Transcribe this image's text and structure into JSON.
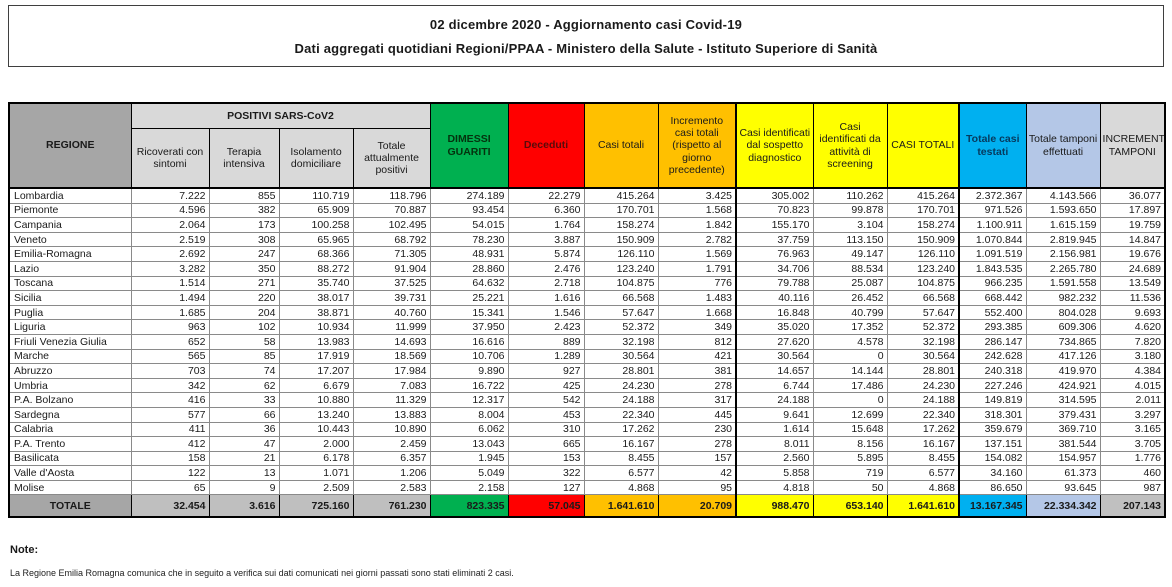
{
  "title": {
    "line1": "02 dicembre 2020 - Aggiornamento casi Covid-19",
    "line2": "Dati aggregati quotidiani Regioni/PPAA - Ministero della Salute - Istituto Superiore di Sanità"
  },
  "table": {
    "headers": {
      "regione": "REGIONE",
      "positivi_group": "POSITIVI SARS-CoV2",
      "ricoverati": "Ricoverati con sintomi",
      "terapia": "Terapia intensiva",
      "isolamento": "Isolamento domiciliare",
      "totale_positivi": "Totale attualmente positivi",
      "dimessi": "DIMESSI GUARITI",
      "deceduti": "Deceduti",
      "casi_totali": "Casi totali",
      "incremento_casi": "Incremento casi totali (rispetto al giorno precedente)",
      "sospetto": "Casi identificati dal sospetto diagnostico",
      "screening": "Casi identificati da attività di screening",
      "casi_totali_caps": "CASI TOTALI",
      "testati": "Totale casi testati",
      "tamponi": "Totale tamponi effettuati",
      "incremento_tamponi": "INCREMENTO TAMPONI"
    },
    "rows": [
      {
        "region": "Lombardia",
        "values": [
          "7.222",
          "855",
          "110.719",
          "118.796",
          "274.189",
          "22.279",
          "415.264",
          "3.425",
          "305.002",
          "110.262",
          "415.264",
          "2.372.367",
          "4.143.566",
          "36.077"
        ]
      },
      {
        "region": "Piemonte",
        "values": [
          "4.596",
          "382",
          "65.909",
          "70.887",
          "93.454",
          "6.360",
          "170.701",
          "1.568",
          "70.823",
          "99.878",
          "170.701",
          "971.526",
          "1.593.650",
          "17.897"
        ]
      },
      {
        "region": "Campania",
        "values": [
          "2.064",
          "173",
          "100.258",
          "102.495",
          "54.015",
          "1.764",
          "158.274",
          "1.842",
          "155.170",
          "3.104",
          "158.274",
          "1.100.911",
          "1.615.159",
          "19.759"
        ]
      },
      {
        "region": "Veneto",
        "values": [
          "2.519",
          "308",
          "65.965",
          "68.792",
          "78.230",
          "3.887",
          "150.909",
          "2.782",
          "37.759",
          "113.150",
          "150.909",
          "1.070.844",
          "2.819.945",
          "14.847"
        ]
      },
      {
        "region": "Emilia-Romagna",
        "values": [
          "2.692",
          "247",
          "68.366",
          "71.305",
          "48.931",
          "5.874",
          "126.110",
          "1.569",
          "76.963",
          "49.147",
          "126.110",
          "1.091.519",
          "2.156.981",
          "19.676"
        ]
      },
      {
        "region": "Lazio",
        "values": [
          "3.282",
          "350",
          "88.272",
          "91.904",
          "28.860",
          "2.476",
          "123.240",
          "1.791",
          "34.706",
          "88.534",
          "123.240",
          "1.843.535",
          "2.265.780",
          "24.689"
        ]
      },
      {
        "region": "Toscana",
        "values": [
          "1.514",
          "271",
          "35.740",
          "37.525",
          "64.632",
          "2.718",
          "104.875",
          "776",
          "79.788",
          "25.087",
          "104.875",
          "966.235",
          "1.591.558",
          "13.549"
        ]
      },
      {
        "region": "Sicilia",
        "values": [
          "1.494",
          "220",
          "38.017",
          "39.731",
          "25.221",
          "1.616",
          "66.568",
          "1.483",
          "40.116",
          "26.452",
          "66.568",
          "668.442",
          "982.232",
          "11.536"
        ]
      },
      {
        "region": "Puglia",
        "values": [
          "1.685",
          "204",
          "38.871",
          "40.760",
          "15.341",
          "1.546",
          "57.647",
          "1.668",
          "16.848",
          "40.799",
          "57.647",
          "552.400",
          "804.028",
          "9.693"
        ]
      },
      {
        "region": "Liguria",
        "values": [
          "963",
          "102",
          "10.934",
          "11.999",
          "37.950",
          "2.423",
          "52.372",
          "349",
          "35.020",
          "17.352",
          "52.372",
          "293.385",
          "609.306",
          "4.620"
        ]
      },
      {
        "region": "Friuli Venezia Giulia",
        "values": [
          "652",
          "58",
          "13.983",
          "14.693",
          "16.616",
          "889",
          "32.198",
          "812",
          "27.620",
          "4.578",
          "32.198",
          "286.147",
          "734.865",
          "7.820"
        ]
      },
      {
        "region": "Marche",
        "values": [
          "565",
          "85",
          "17.919",
          "18.569",
          "10.706",
          "1.289",
          "30.564",
          "421",
          "30.564",
          "0",
          "30.564",
          "242.628",
          "417.126",
          "3.180"
        ]
      },
      {
        "region": "Abruzzo",
        "values": [
          "703",
          "74",
          "17.207",
          "17.984",
          "9.890",
          "927",
          "28.801",
          "381",
          "14.657",
          "14.144",
          "28.801",
          "240.318",
          "419.970",
          "4.384"
        ]
      },
      {
        "region": "Umbria",
        "values": [
          "342",
          "62",
          "6.679",
          "7.083",
          "16.722",
          "425",
          "24.230",
          "278",
          "6.744",
          "17.486",
          "24.230",
          "227.246",
          "424.921",
          "4.015"
        ]
      },
      {
        "region": "P.A. Bolzano",
        "values": [
          "416",
          "33",
          "10.880",
          "11.329",
          "12.317",
          "542",
          "24.188",
          "317",
          "24.188",
          "0",
          "24.188",
          "149.819",
          "314.595",
          "2.011"
        ]
      },
      {
        "region": "Sardegna",
        "values": [
          "577",
          "66",
          "13.240",
          "13.883",
          "8.004",
          "453",
          "22.340",
          "445",
          "9.641",
          "12.699",
          "22.340",
          "318.301",
          "379.431",
          "3.297"
        ]
      },
      {
        "region": "Calabria",
        "values": [
          "411",
          "36",
          "10.443",
          "10.890",
          "6.062",
          "310",
          "17.262",
          "230",
          "1.614",
          "15.648",
          "17.262",
          "359.679",
          "369.710",
          "3.165"
        ]
      },
      {
        "region": "P.A. Trento",
        "values": [
          "412",
          "47",
          "2.000",
          "2.459",
          "13.043",
          "665",
          "16.167",
          "278",
          "8.011",
          "8.156",
          "16.167",
          "137.151",
          "381.544",
          "3.705"
        ]
      },
      {
        "region": "Basilicata",
        "values": [
          "158",
          "21",
          "6.178",
          "6.357",
          "1.945",
          "153",
          "8.455",
          "157",
          "2.560",
          "5.895",
          "8.455",
          "154.082",
          "154.957",
          "1.776"
        ]
      },
      {
        "region": "Valle d'Aosta",
        "values": [
          "122",
          "13",
          "1.071",
          "1.206",
          "5.049",
          "322",
          "6.577",
          "42",
          "5.858",
          "719",
          "6.577",
          "34.160",
          "61.373",
          "460"
        ]
      },
      {
        "region": "Molise",
        "values": [
          "65",
          "9",
          "2.509",
          "2.583",
          "2.158",
          "127",
          "4.868",
          "95",
          "4.818",
          "50",
          "4.868",
          "86.650",
          "93.645",
          "987"
        ]
      }
    ],
    "totale": {
      "label": "TOTALE",
      "values": [
        "32.454",
        "3.616",
        "725.160",
        "761.230",
        "823.335",
        "57.045",
        "1.641.610",
        "20.709",
        "988.470",
        "653.140",
        "1.641.610",
        "13.167.345",
        "22.334.342",
        "207.143"
      ]
    }
  },
  "notes": {
    "heading": "Note:",
    "line1": "La Regione Emilia Romagna comunica che in seguito a verifica sui dati comunicati nei giorni passati sono stati eliminati 2 casi."
  },
  "colors": {
    "green": "#00b050",
    "red": "#ff0000",
    "orange": "#ffc000",
    "yellow": "#ffff00",
    "cyan": "#00b0f0",
    "light_blue": "#b4c7e7",
    "gray_dark": "#a6a6a6",
    "gray_light": "#d9d9d9"
  }
}
